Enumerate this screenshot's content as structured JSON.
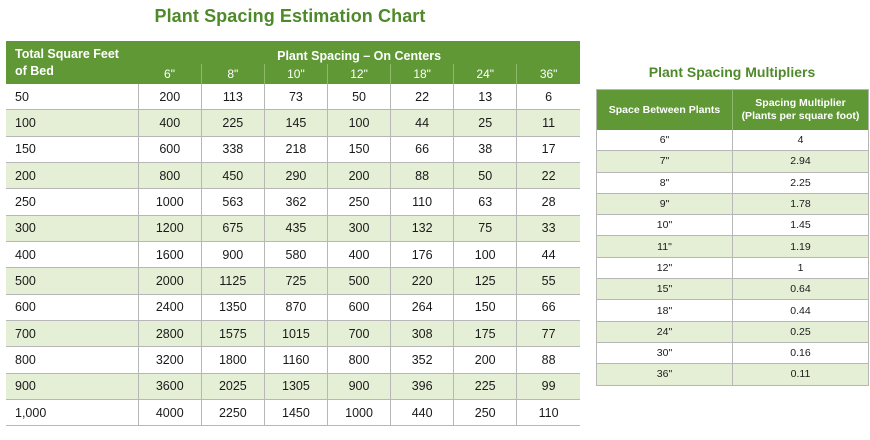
{
  "main_title": "Plant Spacing Estimation Chart",
  "side_title": "Plant Spacing Multipliers",
  "main_table": {
    "row_header_line1": "Total Square Feet",
    "row_header_line2": "of Bed",
    "group_header": "Plant Spacing – On Centers",
    "spacings": [
      "6\"",
      "8\"",
      "10\"",
      "12\"",
      "18\"",
      "24\"",
      "36\""
    ],
    "rows": [
      {
        "label": "50",
        "values": [
          "200",
          "113",
          "73",
          "50",
          "22",
          "13",
          "6"
        ]
      },
      {
        "label": "100",
        "values": [
          "400",
          "225",
          "145",
          "100",
          "44",
          "25",
          "11"
        ]
      },
      {
        "label": "150",
        "values": [
          "600",
          "338",
          "218",
          "150",
          "66",
          "38",
          "17"
        ]
      },
      {
        "label": "200",
        "values": [
          "800",
          "450",
          "290",
          "200",
          "88",
          "50",
          "22"
        ]
      },
      {
        "label": "250",
        "values": [
          "1000",
          "563",
          "362",
          "250",
          "110",
          "63",
          "28"
        ]
      },
      {
        "label": "300",
        "values": [
          "1200",
          "675",
          "435",
          "300",
          "132",
          "75",
          "33"
        ]
      },
      {
        "label": "400",
        "values": [
          "1600",
          "900",
          "580",
          "400",
          "176",
          "100",
          "44"
        ]
      },
      {
        "label": "500",
        "values": [
          "2000",
          "1125",
          "725",
          "500",
          "220",
          "125",
          "55"
        ]
      },
      {
        "label": "600",
        "values": [
          "2400",
          "1350",
          "870",
          "600",
          "264",
          "150",
          "66"
        ]
      },
      {
        "label": "700",
        "values": [
          "2800",
          "1575",
          "1015",
          "700",
          "308",
          "175",
          "77"
        ]
      },
      {
        "label": "800",
        "values": [
          "3200",
          "1800",
          "1160",
          "800",
          "352",
          "200",
          "88"
        ]
      },
      {
        "label": "900",
        "values": [
          "3600",
          "2025",
          "1305",
          "900",
          "396",
          "225",
          "99"
        ]
      },
      {
        "label": "1,000",
        "values": [
          "4000",
          "2250",
          "1450",
          "1000",
          "440",
          "250",
          "110"
        ]
      }
    ]
  },
  "side_table": {
    "col1_header": "Space Between Plants",
    "col2_header_line1": "Spacing Multiplier",
    "col2_header_line2": "(Plants per square foot)",
    "rows": [
      {
        "space": "6\"",
        "multiplier": "4"
      },
      {
        "space": "7\"",
        "multiplier": "2.94"
      },
      {
        "space": "8\"",
        "multiplier": "2.25"
      },
      {
        "space": "9\"",
        "multiplier": "1.78"
      },
      {
        "space": "10\"",
        "multiplier": "1.45"
      },
      {
        "space": "11\"",
        "multiplier": "1.19"
      },
      {
        "space": "12\"",
        "multiplier": "1"
      },
      {
        "space": "15\"",
        "multiplier": "0.64"
      },
      {
        "space": "18\"",
        "multiplier": "0.44"
      },
      {
        "space": "24\"",
        "multiplier": "0.25"
      },
      {
        "space": "30\"",
        "multiplier": "0.16"
      },
      {
        "space": "36\"",
        "multiplier": "0.11"
      }
    ]
  },
  "colors": {
    "title_green": "#4f8a2a",
    "header_green": "#5f9835",
    "row_tint": "#e5efd5",
    "rule_gray": "#b7b7b7"
  }
}
